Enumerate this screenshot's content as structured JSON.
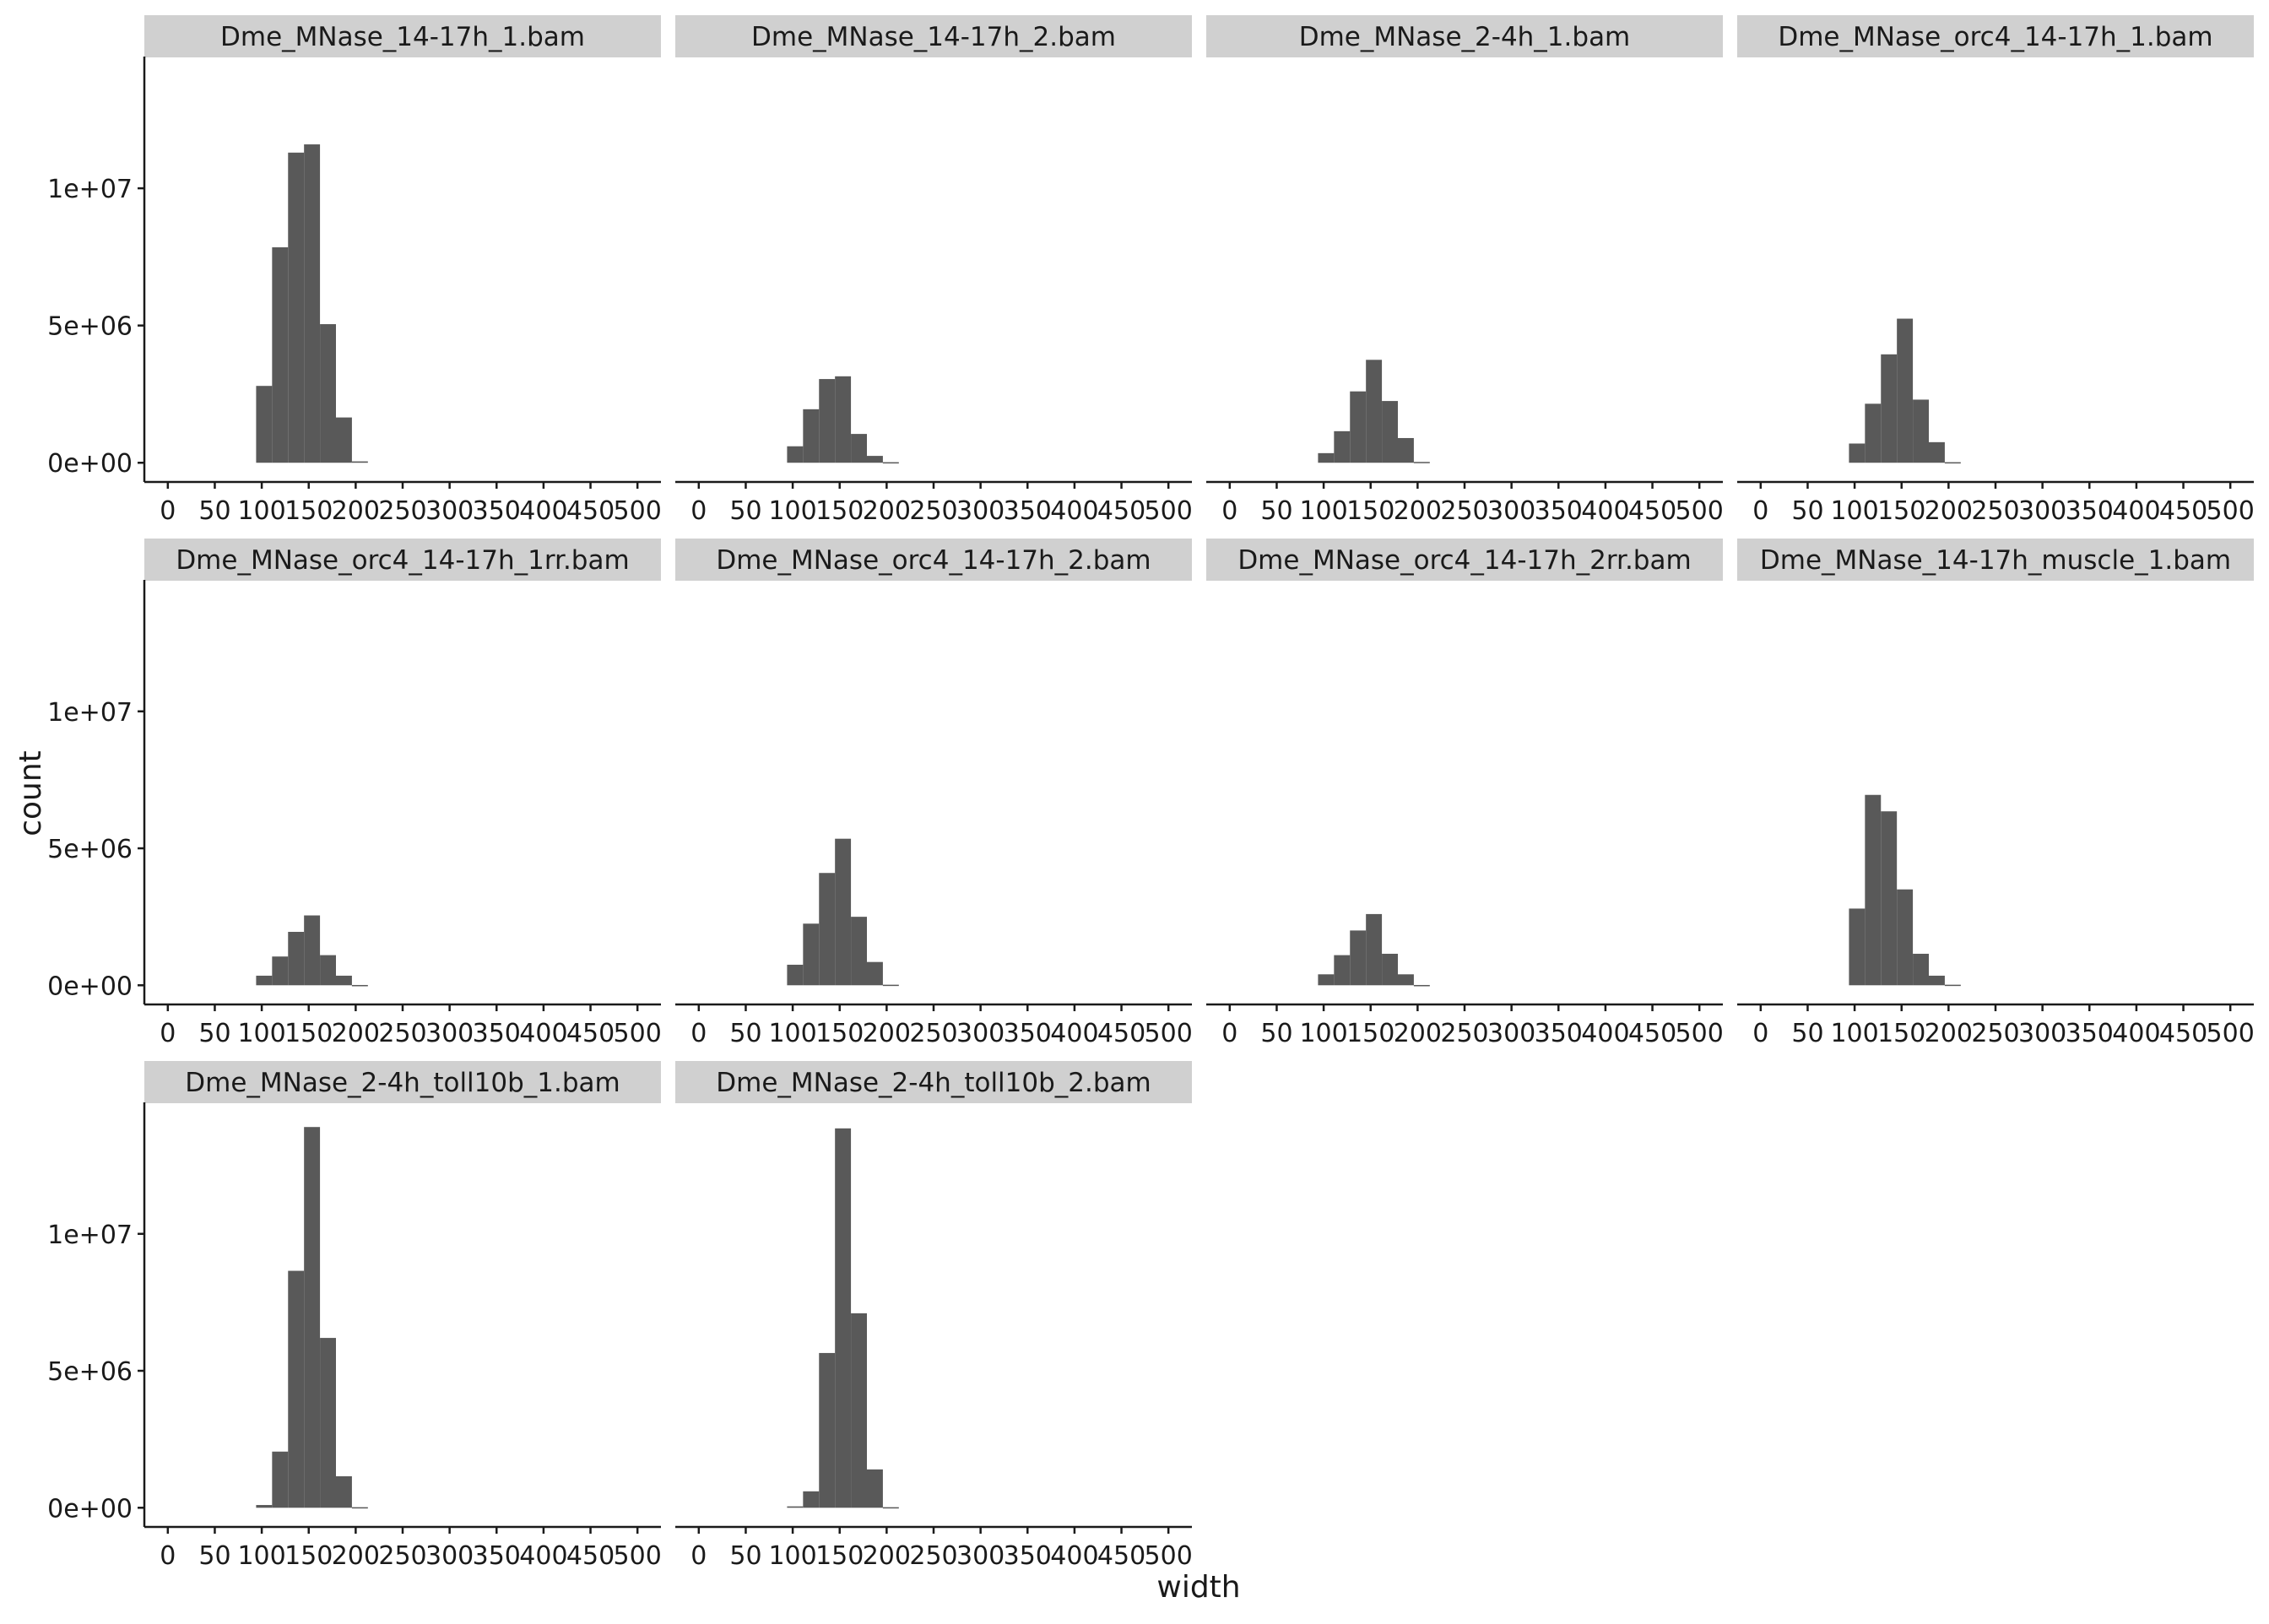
{
  "chart_data": {
    "type": "bar",
    "subtype": "faceted-histogram",
    "xlabel": "width",
    "ylabel": "count",
    "x_ticks": [
      0,
      50,
      100,
      150,
      200,
      250,
      300,
      350,
      400,
      450,
      500
    ],
    "x_tick_labels": [
      "0",
      "50",
      "100",
      "150",
      "200",
      "250",
      "300",
      "350",
      "400",
      "450",
      "500"
    ],
    "xlim": [
      -25,
      525
    ],
    "y_ticks": [
      0,
      5000000,
      10000000
    ],
    "y_tick_labels": [
      "0e+00",
      "5e+06",
      "1e+07"
    ],
    "ylim": [
      -700000,
      14800000
    ],
    "grid": false,
    "legend": "none",
    "bin_width": 17,
    "bin_starts": [
      94,
      111,
      128,
      145,
      162,
      179,
      196
    ],
    "colors": {
      "bar": "#595959",
      "strip": "#d0d0d0",
      "axis": "#1a1a1a",
      "background": "#ffffff"
    },
    "panels": [
      {
        "title": "Dme_MNase_14-17h_1.bam",
        "values": [
          2800000,
          7850000,
          11300000,
          11600000,
          5050000,
          1650000,
          50000
        ]
      },
      {
        "title": "Dme_MNase_14-17h_2.bam",
        "values": [
          600000,
          1950000,
          3050000,
          3150000,
          1050000,
          250000,
          20000
        ]
      },
      {
        "title": "Dme_MNase_2-4h_1.bam",
        "values": [
          350000,
          1150000,
          2600000,
          3750000,
          2250000,
          900000,
          30000
        ]
      },
      {
        "title": "Dme_MNase_orc4_14-17h_1.bam",
        "values": [
          700000,
          2150000,
          3950000,
          5250000,
          2300000,
          750000,
          20000
        ]
      },
      {
        "title": "Dme_MNase_orc4_14-17h_1rr.bam",
        "values": [
          350000,
          1050000,
          1950000,
          2550000,
          1100000,
          350000,
          10000
        ]
      },
      {
        "title": "Dme_MNase_orc4_14-17h_2.bam",
        "values": [
          750000,
          2250000,
          4100000,
          5350000,
          2500000,
          850000,
          20000
        ]
      },
      {
        "title": "Dme_MNase_orc4_14-17h_2rr.bam",
        "values": [
          400000,
          1100000,
          2000000,
          2600000,
          1150000,
          400000,
          10000
        ]
      },
      {
        "title": "Dme_MNase_14-17h_muscle_1.bam",
        "values": [
          2800000,
          6950000,
          6350000,
          3500000,
          1150000,
          350000,
          20000
        ]
      },
      {
        "title": "Dme_MNase_2-4h_toll10b_1.bam",
        "values": [
          100000,
          2050000,
          8650000,
          13900000,
          6200000,
          1150000,
          20000
        ]
      },
      {
        "title": "Dme_MNase_2-4h_toll10b_2.bam",
        "values": [
          50000,
          600000,
          5650000,
          13850000,
          7100000,
          1400000,
          20000
        ]
      }
    ]
  }
}
